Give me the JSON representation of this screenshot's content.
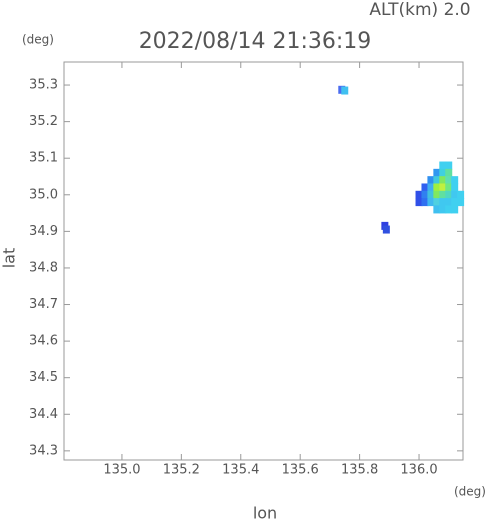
{
  "chart_data": {
    "type": "scatter",
    "title": "2022/08/14 21:36:19",
    "subtitle": "ALT(km) 2.0",
    "x_label": "lon",
    "y_label": "lat",
    "x_unit": "(deg)",
    "y_unit": "(deg)",
    "xlim": [
      134.805,
      136.148
    ],
    "ylim": [
      34.275,
      35.363
    ],
    "xticks": [
      {
        "value": 135,
        "label": "135.0"
      },
      135.2,
      135.4,
      135.6,
      135.8,
      {
        "value": 136,
        "label": "136.0"
      }
    ],
    "yticks": [
      34.3,
      34.4,
      34.5,
      34.6,
      34.7,
      34.8,
      34.9,
      {
        "value": 35,
        "label": "35.0"
      },
      35.1,
      35.2,
      35.3
    ],
    "x": [
      135.74,
      135.75,
      135.885,
      135.89,
      136.08,
      136.1,
      136.06,
      136.08,
      136.1,
      136.04,
      136.06,
      136.08,
      136.1,
      136.12,
      136.02,
      136.04,
      136.06,
      136.08,
      136.1,
      136.12,
      136.0,
      136.02,
      136.04,
      136.06,
      136.08,
      136.1,
      136.12,
      136.14,
      136.0,
      136.02,
      136.04,
      136.06,
      136.08,
      136.1,
      136.12,
      136.14,
      136.06,
      136.08,
      136.1,
      136.12
    ],
    "y": [
      35.287,
      35.285,
      34.915,
      34.905,
      35.08,
      35.08,
      35.06,
      35.06,
      35.06,
      35.04,
      35.04,
      35.04,
      35.04,
      35.04,
      35.02,
      35.02,
      35.02,
      35.02,
      35.02,
      35.02,
      35.0,
      35.0,
      35.0,
      35.0,
      35.0,
      35.0,
      35.0,
      35.0,
      34.98,
      34.98,
      34.98,
      34.98,
      34.98,
      34.98,
      34.98,
      34.98,
      34.96,
      34.96,
      34.96,
      34.96
    ],
    "colors": [
      "#4a6cf0",
      "#40c0f0",
      "#3040e0",
      "#3050e0",
      "#40d0f0",
      "#40d0f0",
      "#3098f0",
      "#40d0e0",
      "#60e0a0",
      "#3090f0",
      "#40c8e0",
      "#80e860",
      "#60e0b0",
      "#40d0f0",
      "#3060f0",
      "#40b0f0",
      "#a0f040",
      "#c0f040",
      "#70e880",
      "#40d0f0",
      "#3050e8",
      "#3080f0",
      "#40c0e0",
      "#80e860",
      "#60e0a0",
      "#50d8c0",
      "#40c8f0",
      "#40d0f0",
      "#3050e8",
      "#3070f0",
      "#40b8f0",
      "#50d0e0",
      "#40c8f0",
      "#40c8f0",
      "#40d0f0",
      "#40d0f0",
      "#40c0f0",
      "#40c8f0",
      "#40d0f0",
      "#40d0f0"
    ]
  }
}
